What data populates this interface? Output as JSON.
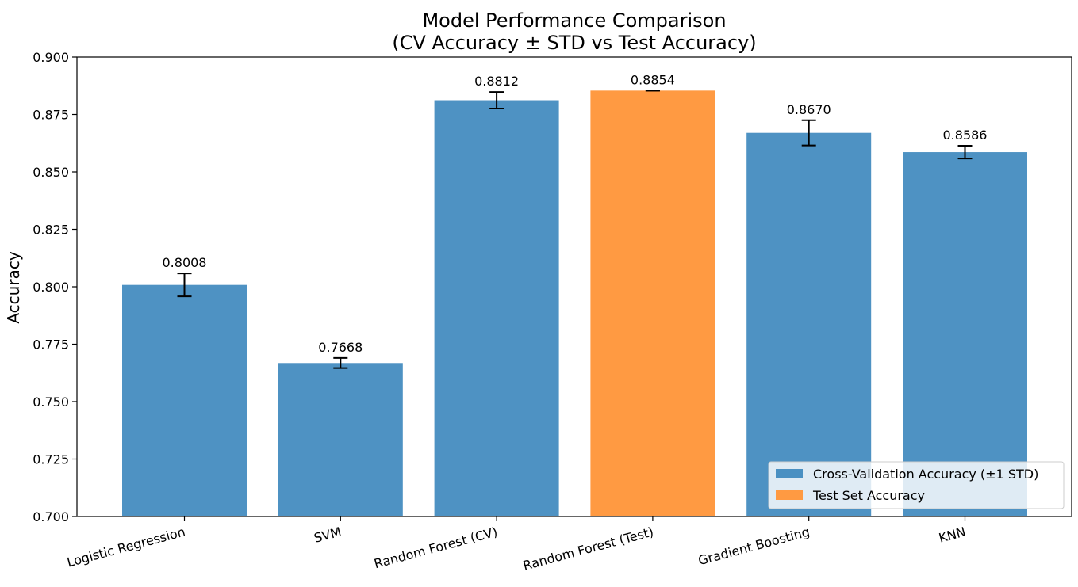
{
  "chart_data": {
    "type": "bar",
    "title": "Model Performance Comparison",
    "subtitle": "(CV Accuracy ± STD vs Test Accuracy)",
    "xlabel": "",
    "ylabel": "Accuracy",
    "ylim": [
      0.7,
      0.9
    ],
    "yticks": [
      "0.700",
      "0.725",
      "0.750",
      "0.775",
      "0.800",
      "0.825",
      "0.850",
      "0.875",
      "0.900"
    ],
    "grid": false,
    "legend_position": "lower-right",
    "categories": [
      "Logistic Regression",
      "SVM",
      "Random Forest (CV)",
      "Random Forest (Test)",
      "Gradient Boosting",
      "KNN"
    ],
    "values": [
      0.8008,
      0.7668,
      0.8812,
      0.8854,
      0.867,
      0.8586
    ],
    "value_labels": [
      "0.8008",
      "0.7668",
      "0.8812",
      "0.8854",
      "0.8670",
      "0.8586"
    ],
    "errors": [
      0.005,
      0.0022,
      0.0036,
      0.0,
      0.0055,
      0.0028
    ],
    "bar_series": [
      "cv",
      "cv",
      "cv",
      "test",
      "cv",
      "cv"
    ],
    "series": [
      {
        "key": "cv",
        "name": "Cross-Validation Accuracy (±1 STD)",
        "color": "#4a90c2"
      },
      {
        "key": "test",
        "name": "Test Set Accuracy",
        "color": "#ff9a42"
      }
    ]
  }
}
